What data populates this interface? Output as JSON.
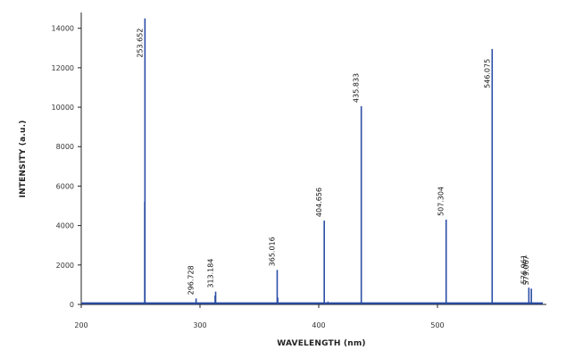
{
  "chart_data": {
    "type": "line",
    "title": "",
    "xlabel": "WAVELENGTH (nm)",
    "ylabel": "INTENSITY (a.u.)",
    "xlim": [
      200,
      590
    ],
    "ylim": [
      0,
      14800
    ],
    "xticks": [
      200,
      300,
      400,
      500
    ],
    "yticks": [
      0,
      2000,
      4000,
      6000,
      8000,
      10000,
      12000,
      14000
    ],
    "grid": false,
    "line_color": "#2b4ea6",
    "baseline_color": "#2b4ea6",
    "baseline_value": 60,
    "peaks": [
      {
        "x": 253.652,
        "y": 14500,
        "label": "253.652"
      },
      {
        "x": 296.728,
        "y": 300,
        "label": "296.728"
      },
      {
        "x": 313.184,
        "y": 650,
        "label": "313.184"
      },
      {
        "x": 365.016,
        "y": 1750,
        "label": "365.016"
      },
      {
        "x": 404.656,
        "y": 4250,
        "label": "404.656"
      },
      {
        "x": 435.833,
        "y": 10050,
        "label": "435.833"
      },
      {
        "x": 507.304,
        "y": 4300,
        "label": "507.304"
      },
      {
        "x": 546.075,
        "y": 12950,
        "label": "546.075"
      },
      {
        "x": 576.961,
        "y": 850,
        "label": "576.961"
      },
      {
        "x": 579.067,
        "y": 800,
        "label": "579.067"
      }
    ],
    "minor_peaks": [
      {
        "x": 253.3,
        "y": 5200
      },
      {
        "x": 312.6,
        "y": 450
      },
      {
        "x": 365.6,
        "y": 350
      },
      {
        "x": 407.8,
        "y": 150
      }
    ]
  }
}
